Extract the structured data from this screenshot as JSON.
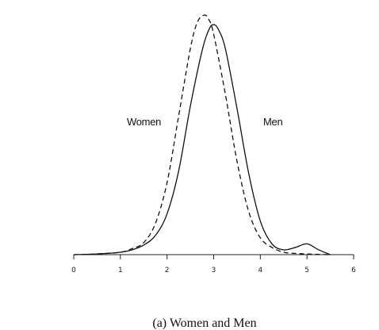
{
  "chart_data": {
    "type": "line",
    "xlabel": "",
    "ylabel": "",
    "xlim": [
      0,
      6
    ],
    "ylim": [
      0,
      1.0
    ],
    "x_ticks": [
      0,
      1,
      2,
      3,
      4,
      5,
      6
    ],
    "grid": false,
    "legend": "none",
    "annotations": [
      {
        "text": "Women",
        "x": 1.75,
        "y": 0.6
      },
      {
        "text": "Men",
        "x": 4.25,
        "y": 0.6
      }
    ],
    "caption": "(a) Women and Men",
    "series": [
      {
        "name": "Men",
        "line_style": "solid",
        "x": [
          0.0,
          0.5,
          1.0,
          1.25,
          1.5,
          1.75,
          2.0,
          2.25,
          2.5,
          2.75,
          2.9,
          3.0,
          3.1,
          3.25,
          3.5,
          3.75,
          4.0,
          4.25,
          4.5,
          4.75,
          5.0,
          5.25,
          5.5
        ],
        "y": [
          0.0,
          0.003,
          0.01,
          0.02,
          0.04,
          0.08,
          0.17,
          0.35,
          0.62,
          0.85,
          0.94,
          0.96,
          0.94,
          0.86,
          0.61,
          0.34,
          0.14,
          0.045,
          0.02,
          0.03,
          0.045,
          0.02,
          0.0
        ]
      },
      {
        "name": "Women",
        "line_style": "dashed",
        "x": [
          0.0,
          0.5,
          1.0,
          1.25,
          1.5,
          1.75,
          2.0,
          2.25,
          2.5,
          2.65,
          2.8,
          2.9,
          3.0,
          3.25,
          3.5,
          3.75,
          4.0,
          4.25,
          4.5,
          4.75,
          5.0,
          5.25,
          5.5
        ],
        "y": [
          0.0,
          0.003,
          0.01,
          0.025,
          0.05,
          0.13,
          0.3,
          0.58,
          0.86,
          0.97,
          1.0,
          0.98,
          0.92,
          0.67,
          0.39,
          0.18,
          0.07,
          0.03,
          0.01,
          0.005,
          0.003,
          0.001,
          0.0
        ]
      }
    ]
  }
}
